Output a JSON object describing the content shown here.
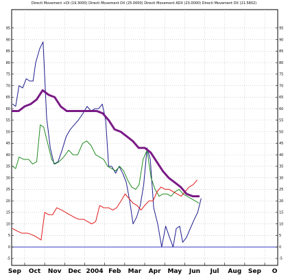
{
  "chart_data": {
    "type": "line",
    "title": "Directi Movement +DI (19.3000) Directi Movement DX (25.0000) Directi Movement ADX (23.0000) Directi Movement DX (21.5802)",
    "x": [
      "Sep",
      "Oct",
      "Nov",
      "Dec",
      "2004",
      "Feb",
      "Mar",
      "Apr",
      "May",
      "Jun",
      "Jul",
      "Aug",
      "Sep",
      "O"
    ],
    "x_domain": [
      -0.15,
      13.15
    ],
    "ylim": [
      -8,
      103
    ],
    "y_ticks": [
      -5,
      0,
      5,
      10,
      15,
      20,
      25,
      30,
      35,
      40,
      45,
      50,
      55,
      60,
      65,
      70,
      75,
      80,
      85,
      90,
      95
    ],
    "grid": true,
    "baseline": 0,
    "colors": {
      "blue": "#1c1c8c",
      "green": "#208a20",
      "red": "#e01818",
      "purple": "#7a1a86",
      "baseline": "#3a3ac8"
    },
    "series": [
      {
        "color": "#1c1c8c",
        "points": [
          [
            -0.1,
            62
          ],
          [
            0.05,
            61
          ],
          [
            0.22,
            70
          ],
          [
            0.4,
            69
          ],
          [
            0.58,
            73
          ],
          [
            0.75,
            72
          ],
          [
            0.92,
            72
          ],
          [
            1.05,
            80
          ],
          [
            1.25,
            86
          ],
          [
            1.42,
            89
          ],
          [
            1.6,
            56
          ],
          [
            1.78,
            43
          ],
          [
            1.97,
            36
          ],
          [
            2.17,
            37
          ],
          [
            2.37,
            42
          ],
          [
            2.58,
            48
          ],
          [
            2.78,
            51
          ],
          [
            2.98,
            53
          ],
          [
            3.18,
            55
          ],
          [
            3.42,
            58
          ],
          [
            3.62,
            61
          ],
          [
            3.82,
            59
          ],
          [
            4.02,
            60
          ],
          [
            4.2,
            60
          ],
          [
            4.38,
            62
          ],
          [
            4.55,
            55
          ],
          [
            4.7,
            35
          ],
          [
            4.85,
            35
          ],
          [
            5.05,
            32
          ],
          [
            5.22,
            35
          ],
          [
            5.4,
            32
          ],
          [
            5.58,
            28
          ],
          [
            5.75,
            20
          ],
          [
            5.92,
            10
          ],
          [
            6.1,
            13
          ],
          [
            6.28,
            18
          ],
          [
            6.45,
            27
          ],
          [
            6.62,
            43
          ],
          [
            6.78,
            38
          ],
          [
            6.95,
            17
          ],
          [
            7.15,
            10
          ],
          [
            7.35,
            0
          ],
          [
            7.55,
            9
          ],
          [
            7.75,
            4
          ],
          [
            7.92,
            0
          ],
          [
            8.08,
            8
          ],
          [
            8.25,
            9
          ],
          [
            8.4,
            2
          ],
          [
            8.58,
            4
          ],
          [
            8.78,
            8
          ],
          [
            8.98,
            12
          ],
          [
            9.15,
            15
          ],
          [
            9.32,
            21
          ]
        ]
      },
      {
        "color": "#208a20",
        "points": [
          [
            -0.1,
            35
          ],
          [
            0.05,
            34
          ],
          [
            0.22,
            39
          ],
          [
            0.45,
            38
          ],
          [
            0.7,
            38
          ],
          [
            0.9,
            36
          ],
          [
            1.1,
            37
          ],
          [
            1.28,
            53
          ],
          [
            1.45,
            52
          ],
          [
            1.65,
            45
          ],
          [
            1.85,
            38
          ],
          [
            2.02,
            36
          ],
          [
            2.22,
            37
          ],
          [
            2.45,
            39
          ],
          [
            2.7,
            42
          ],
          [
            2.92,
            40
          ],
          [
            3.15,
            40
          ],
          [
            3.4,
            45
          ],
          [
            3.6,
            46
          ],
          [
            3.82,
            44
          ],
          [
            4.05,
            40
          ],
          [
            4.25,
            39
          ],
          [
            4.45,
            38
          ],
          [
            4.65,
            35
          ],
          [
            4.85,
            34
          ],
          [
            5.05,
            33
          ],
          [
            5.25,
            35
          ],
          [
            5.45,
            33
          ],
          [
            5.65,
            29
          ],
          [
            5.85,
            26
          ],
          [
            6.05,
            25
          ],
          [
            6.22,
            27
          ],
          [
            6.42,
            38
          ],
          [
            6.62,
            42
          ],
          [
            6.82,
            30
          ],
          [
            7.02,
            25
          ],
          [
            7.22,
            22
          ],
          [
            7.42,
            23
          ],
          [
            7.62,
            23
          ],
          [
            7.82,
            22
          ],
          [
            8.02,
            24
          ],
          [
            8.22,
            25
          ],
          [
            8.42,
            23
          ],
          [
            8.62,
            22
          ],
          [
            8.82,
            21
          ],
          [
            9.02,
            20
          ],
          [
            9.2,
            19
          ]
        ]
      },
      {
        "color": "#e01818",
        "points": [
          [
            -0.1,
            8
          ],
          [
            0.1,
            7
          ],
          [
            0.35,
            6
          ],
          [
            0.65,
            6
          ],
          [
            0.95,
            5
          ],
          [
            1.15,
            4
          ],
          [
            1.32,
            3
          ],
          [
            1.5,
            15
          ],
          [
            1.7,
            14
          ],
          [
            1.9,
            14
          ],
          [
            2.1,
            17
          ],
          [
            2.35,
            16
          ],
          [
            2.55,
            15
          ],
          [
            2.75,
            14
          ],
          [
            2.95,
            13
          ],
          [
            3.2,
            12
          ],
          [
            3.45,
            12
          ],
          [
            3.65,
            11
          ],
          [
            3.85,
            10
          ],
          [
            4.05,
            11
          ],
          [
            4.25,
            18
          ],
          [
            4.45,
            17
          ],
          [
            4.7,
            17
          ],
          [
            4.9,
            16
          ],
          [
            5.1,
            17
          ],
          [
            5.32,
            20
          ],
          [
            5.52,
            23
          ],
          [
            5.72,
            21
          ],
          [
            5.92,
            19
          ],
          [
            6.12,
            18
          ],
          [
            6.32,
            16
          ],
          [
            6.5,
            18
          ],
          [
            6.72,
            20
          ],
          [
            6.92,
            20
          ],
          [
            7.12,
            24
          ],
          [
            7.32,
            26
          ],
          [
            7.52,
            25
          ],
          [
            7.72,
            25
          ],
          [
            7.92,
            24
          ],
          [
            8.12,
            23
          ],
          [
            8.32,
            22
          ],
          [
            8.52,
            24
          ],
          [
            8.72,
            26
          ],
          [
            8.92,
            27
          ],
          [
            9.12,
            29
          ]
        ]
      },
      {
        "color": "#7a1a86",
        "points": [
          [
            -0.1,
            59
          ],
          [
            0.2,
            59
          ],
          [
            0.5,
            61
          ],
          [
            0.8,
            62
          ],
          [
            1.1,
            64
          ],
          [
            1.4,
            68
          ],
          [
            1.7,
            66
          ],
          [
            2.0,
            65
          ],
          [
            2.3,
            61
          ],
          [
            2.6,
            59
          ],
          [
            2.9,
            59
          ],
          [
            3.2,
            59
          ],
          [
            3.5,
            59
          ],
          [
            3.8,
            59
          ],
          [
            4.1,
            59
          ],
          [
            4.4,
            58
          ],
          [
            4.7,
            55
          ],
          [
            5.0,
            51
          ],
          [
            5.3,
            50
          ],
          [
            5.6,
            48
          ],
          [
            5.9,
            46
          ],
          [
            6.2,
            43
          ],
          [
            6.5,
            43
          ],
          [
            6.8,
            41
          ],
          [
            7.1,
            37
          ],
          [
            7.4,
            33
          ],
          [
            7.7,
            30
          ],
          [
            8.0,
            28
          ],
          [
            8.3,
            26
          ],
          [
            8.6,
            23
          ],
          [
            8.9,
            22
          ],
          [
            9.2,
            22
          ]
        ]
      }
    ]
  }
}
